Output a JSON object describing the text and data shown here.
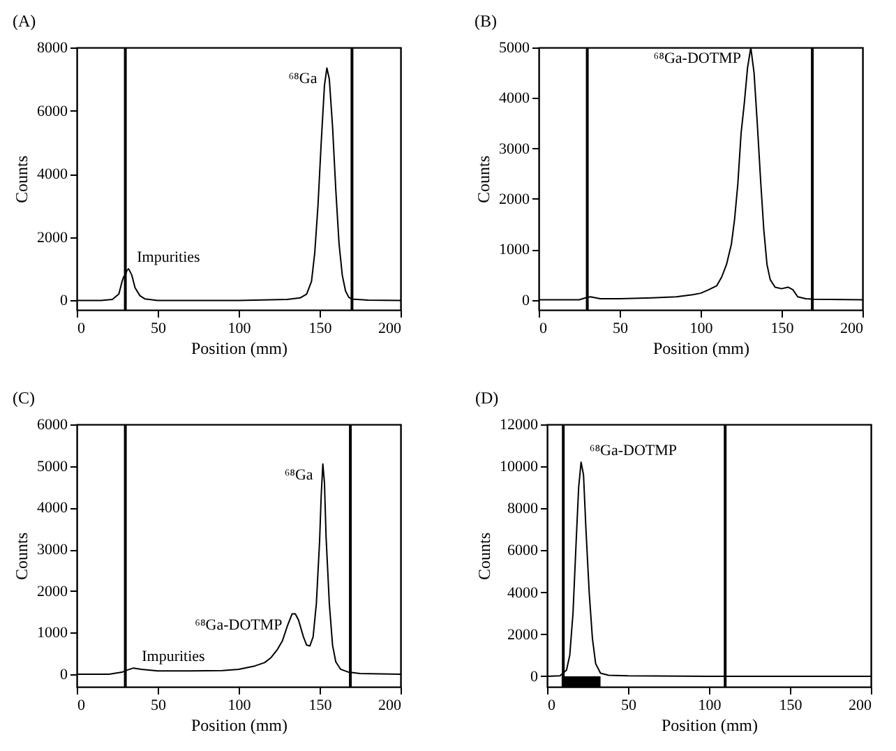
{
  "chart_data": [
    {
      "type": "line",
      "title": "(A)",
      "xlabel": "Position (mm)",
      "ylabel": "Counts",
      "xlim": [
        0,
        200
      ],
      "ylim": [
        -300,
        8000
      ],
      "xticks": [
        0,
        50,
        100,
        150,
        200
      ],
      "yticks": [
        0,
        2000,
        4000,
        6000,
        8000
      ],
      "x": [
        0,
        15,
        22,
        26,
        28,
        29,
        30,
        31,
        32,
        34,
        36,
        39,
        42,
        50,
        100,
        120,
        130,
        138,
        142,
        145,
        147,
        149,
        151,
        153,
        154.5,
        156,
        158,
        160,
        162,
        164,
        166,
        168,
        170,
        180,
        200
      ],
      "series": [
        {
          "color": "#000000",
          "values": [
            0,
            0,
            30,
            200,
            600,
            750,
            800,
            950,
            1000,
            800,
            400,
            150,
            50,
            0,
            0,
            20,
            30,
            80,
            200,
            600,
            1500,
            3000,
            5000,
            6800,
            7350,
            7000,
            5500,
            3500,
            1800,
            800,
            300,
            100,
            40,
            10,
            0
          ]
        }
      ],
      "ref_lines": [
        {
          "axis": "x",
          "value": 30,
          "color": "#000000"
        },
        {
          "axis": "x",
          "value": 170,
          "color": "#000000"
        }
      ],
      "annotations": [
        {
          "text": "Impurities",
          "x": 32,
          "y": 1000
        },
        {
          "text": "⁶⁸Ga",
          "x": 154.5,
          "y": 7350
        }
      ]
    },
    {
      "type": "line",
      "title": "(B)",
      "xlabel": "Position (mm)",
      "ylabel": "Counts",
      "xlim": [
        0,
        200
      ],
      "ylim": [
        -200,
        5000
      ],
      "xticks": [
        0,
        50,
        100,
        150,
        200
      ],
      "yticks": [
        0,
        1000,
        2000,
        3000,
        4000,
        5000
      ],
      "x": [
        0,
        25,
        30,
        32,
        38,
        50,
        70,
        85,
        95,
        100,
        105,
        110,
        113,
        116,
        119,
        121,
        123,
        125,
        127,
        129,
        131,
        133,
        135,
        137,
        139,
        141,
        143,
        146,
        150,
        154,
        157,
        160,
        165,
        170,
        200
      ],
      "series": [
        {
          "color": "#000000",
          "values": [
            0,
            0,
            50,
            60,
            20,
            20,
            40,
            60,
            100,
            130,
            200,
            280,
            450,
            700,
            1100,
            1600,
            2300,
            3300,
            3900,
            4600,
            5000,
            4500,
            3500,
            2400,
            1400,
            700,
            400,
            250,
            220,
            250,
            200,
            60,
            20,
            10,
            0
          ]
        }
      ],
      "ref_lines": [
        {
          "axis": "x",
          "value": 30,
          "color": "#000000"
        },
        {
          "axis": "x",
          "value": 169,
          "color": "#000000"
        }
      ],
      "annotations": [
        {
          "text": "⁶⁸Ga-DOTMP",
          "x": 131,
          "y": 5000
        }
      ]
    },
    {
      "type": "line",
      "title": "(C)",
      "xlabel": "Position (mm)",
      "ylabel": "Counts",
      "xlim": [
        0,
        200
      ],
      "ylim": [
        -300,
        6000
      ],
      "xticks": [
        0,
        50,
        100,
        150,
        200
      ],
      "yticks": [
        0,
        1000,
        2000,
        3000,
        4000,
        5000,
        6000
      ],
      "x": [
        0,
        20,
        28,
        31,
        35,
        40,
        50,
        70,
        90,
        100,
        110,
        116,
        120,
        124,
        127,
        130,
        133,
        135,
        137,
        140,
        142,
        144,
        146,
        148,
        150,
        151,
        152,
        153,
        154,
        156,
        158,
        160,
        163,
        168,
        175,
        200
      ],
      "series": [
        {
          "color": "#000000",
          "values": [
            0,
            0,
            50,
            100,
            150,
            120,
            80,
            80,
            90,
            120,
            200,
            280,
            400,
            600,
            800,
            1150,
            1450,
            1450,
            1300,
            900,
            700,
            680,
            900,
            1700,
            3200,
            4300,
            5050,
            4600,
            3300,
            1700,
            700,
            300,
            120,
            50,
            20,
            0
          ]
        }
      ],
      "ref_lines": [
        {
          "axis": "x",
          "value": 30,
          "color": "#000000"
        },
        {
          "axis": "x",
          "value": 169,
          "color": "#000000"
        }
      ],
      "annotations": [
        {
          "text": "Impurities",
          "x": 35,
          "y": 150
        },
        {
          "text": "⁶⁸Ga-DOTMP",
          "x": 133,
          "y": 1450
        },
        {
          "text": "⁶⁸Ga",
          "x": 152,
          "y": 5050
        }
      ]
    },
    {
      "type": "line",
      "title": "(D)",
      "xlabel": "Position (mm)",
      "ylabel": "Counts",
      "xlim": [
        0,
        200
      ],
      "ylim": [
        -500,
        12000
      ],
      "xticks": [
        0,
        50,
        100,
        150,
        200
      ],
      "yticks": [
        0,
        2000,
        4000,
        6000,
        8000,
        10000,
        12000
      ],
      "x": [
        0,
        8,
        12,
        14,
        16,
        18,
        19.5,
        21,
        22.5,
        24,
        26,
        28,
        30,
        33,
        38,
        50,
        100,
        200
      ],
      "series": [
        {
          "color": "#000000",
          "values": [
            0,
            20,
            300,
            1000,
            3000,
            6500,
            9000,
            10200,
            9600,
            7000,
            4000,
            1800,
            600,
            150,
            50,
            20,
            0,
            0
          ]
        }
      ],
      "ref_lines": [
        {
          "axis": "x",
          "value": 10,
          "color": "#000000"
        },
        {
          "axis": "x",
          "value": 110,
          "color": "#000000"
        }
      ],
      "bands": [
        {
          "axis": "x",
          "from": 9,
          "to": 33,
          "color": "#000000"
        }
      ],
      "annotations": [
        {
          "text": "⁶⁸Ga-DOTMP",
          "x": 21,
          "y": 10200
        }
      ]
    }
  ]
}
